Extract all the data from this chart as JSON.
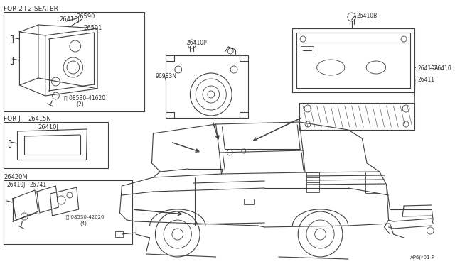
{
  "bg_color": "#ffffff",
  "lc": "#404040",
  "tc": "#303030",
  "part_number_bottom_right": "AP6(*01-P",
  "labels": {
    "for_2plus2_seater": "FOR 2+2 SEATER",
    "for_j": "FOR J",
    "p26590": "26590",
    "p26410J": "26410J",
    "p26591": "26591",
    "p08530_41620": "08530-41620",
    "p41620_qty": "(2)",
    "p96983N": "96983N",
    "p26410P": "26410P",
    "p26410B": "26410B",
    "p26410A": "26410A",
    "p26410": "26410",
    "p26411": "26411",
    "p26415N": "26415N",
    "p26420M": "26420M",
    "p26741": "26741",
    "p08530_42020": "08530-42020",
    "p42020_qty": "(4)"
  }
}
